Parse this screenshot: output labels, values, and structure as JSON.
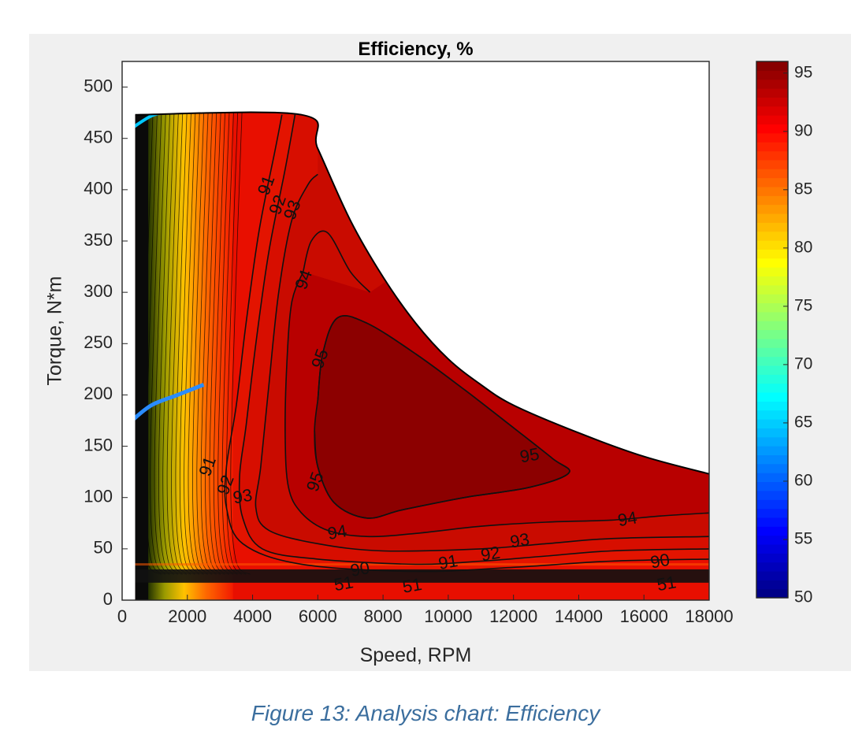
{
  "chart_data": {
    "type": "heatmap",
    "subtype": "filled contour (efficiency map)",
    "title": "Efficiency, %",
    "xlabel": "Speed, RPM",
    "ylabel": "Torque, N*m",
    "xlim": [
      0,
      18000
    ],
    "ylim": [
      0,
      525
    ],
    "xticks": [
      0,
      2000,
      4000,
      6000,
      8000,
      10000,
      12000,
      14000,
      16000,
      18000
    ],
    "yticks": [
      0,
      50,
      100,
      150,
      200,
      250,
      300,
      350,
      400,
      450,
      500
    ],
    "colorbar": {
      "colormap": "jet",
      "range": [
        50,
        96
      ],
      "ticks": [
        50,
        55,
        60,
        65,
        70,
        75,
        80,
        85,
        90,
        95
      ]
    },
    "torque_envelope": {
      "max_torque": 473,
      "corner_speed": 5500,
      "points": [
        [
          400,
          473
        ],
        [
          5500,
          473
        ],
        [
          6000,
          440
        ],
        [
          7000,
          370
        ],
        [
          8000,
          315
        ],
        [
          9000,
          270
        ],
        [
          10000,
          235
        ],
        [
          11000,
          210
        ],
        [
          12000,
          190
        ],
        [
          14000,
          163
        ],
        [
          16000,
          140
        ],
        [
          18000,
          123
        ]
      ]
    },
    "contour_levels": [
      {
        "level": 95,
        "path": [
          [
            6000,
            195
          ],
          [
            6150,
            240
          ],
          [
            6600,
            275
          ],
          [
            7500,
            270
          ],
          [
            9000,
            240
          ],
          [
            10500,
            205
          ],
          [
            12000,
            168
          ],
          [
            13200,
            138
          ],
          [
            13700,
            124
          ],
          [
            12500,
            110
          ],
          [
            10500,
            100
          ],
          [
            8600,
            88
          ],
          [
            7500,
            80
          ],
          [
            6500,
            95
          ],
          [
            6000,
            130
          ],
          [
            5900,
            165
          ]
        ]
      },
      {
        "level": 94,
        "path": [
          [
            5550,
            320
          ],
          [
            5800,
            350
          ],
          [
            6300,
            358
          ],
          [
            7000,
            320
          ],
          [
            7600,
            300
          ]
        ],
        "path2": [
          [
            18000,
            85
          ],
          [
            16500,
            82
          ],
          [
            15000,
            78
          ],
          [
            13000,
            76
          ],
          [
            11000,
            72
          ],
          [
            9000,
            65
          ],
          [
            7500,
            62
          ],
          [
            6300,
            68
          ],
          [
            5500,
            85
          ],
          [
            5100,
            110
          ],
          [
            5000,
            160
          ],
          [
            5050,
            230
          ],
          [
            5200,
            290
          ],
          [
            5550,
            320
          ]
        ]
      },
      {
        "level": 93,
        "path": [
          [
            6000,
            415
          ],
          [
            5700,
            405
          ],
          [
            5200,
            370
          ],
          [
            4800,
            300
          ],
          [
            4500,
            210
          ],
          [
            4250,
            130
          ],
          [
            4100,
            90
          ],
          [
            4500,
            68
          ],
          [
            6000,
            55
          ],
          [
            8000,
            48
          ],
          [
            11000,
            50
          ],
          [
            13000,
            55
          ],
          [
            15000,
            60
          ],
          [
            18000,
            62
          ]
        ]
      },
      {
        "level": 92,
        "path": [
          [
            5300,
            473
          ],
          [
            5000,
            420
          ],
          [
            4500,
            340
          ],
          [
            4100,
            250
          ],
          [
            3800,
            170
          ],
          [
            3600,
            120
          ],
          [
            3700,
            80
          ],
          [
            4300,
            50
          ],
          [
            6000,
            40
          ],
          [
            9000,
            35
          ],
          [
            11000,
            38
          ],
          [
            13000,
            43
          ],
          [
            15000,
            48
          ],
          [
            18000,
            50
          ]
        ]
      },
      {
        "level": 91,
        "path": [
          [
            4900,
            473
          ],
          [
            4700,
            440
          ],
          [
            4200,
            360
          ],
          [
            3800,
            270
          ],
          [
            3500,
            190
          ],
          [
            3200,
            130
          ],
          [
            3200,
            90
          ],
          [
            3700,
            55
          ],
          [
            5500,
            35
          ],
          [
            9000,
            28
          ],
          [
            12000,
            32
          ],
          [
            15000,
            38
          ],
          [
            18000,
            40
          ]
        ]
      }
    ],
    "contour_labels": [
      {
        "text": "91",
        "x": 4450,
        "y": 404
      },
      {
        "text": "92",
        "x": 4800,
        "y": 385
      },
      {
        "text": "93",
        "x": 5250,
        "y": 380
      },
      {
        "text": "94",
        "x": 5600,
        "y": 312
      },
      {
        "text": "95",
        "x": 6100,
        "y": 235
      },
      {
        "text": "95",
        "x": 12500,
        "y": 140
      },
      {
        "text": "95",
        "x": 5950,
        "y": 115
      },
      {
        "text": "94",
        "x": 6600,
        "y": 65
      },
      {
        "text": "94",
        "x": 15500,
        "y": 78
      },
      {
        "text": "93",
        "x": 12200,
        "y": 57
      },
      {
        "text": "92",
        "x": 11300,
        "y": 44
      },
      {
        "text": "91",
        "x": 10000,
        "y": 36
      },
      {
        "text": "91",
        "x": 2650,
        "y": 130
      },
      {
        "text": "92",
        "x": 3200,
        "y": 112
      },
      {
        "text": "93",
        "x": 3700,
        "y": 100
      },
      {
        "text": "51",
        "x": 6800,
        "y": 15
      },
      {
        "text": "51",
        "x": 8900,
        "y": 13
      },
      {
        "text": "51",
        "x": 16700,
        "y": 15
      },
      {
        "text": "90",
        "x": 7300,
        "y": 29
      },
      {
        "text": "90",
        "x": 16500,
        "y": 37
      }
    ]
  },
  "caption": "Figure 13: Analysis chart: Efficiency"
}
